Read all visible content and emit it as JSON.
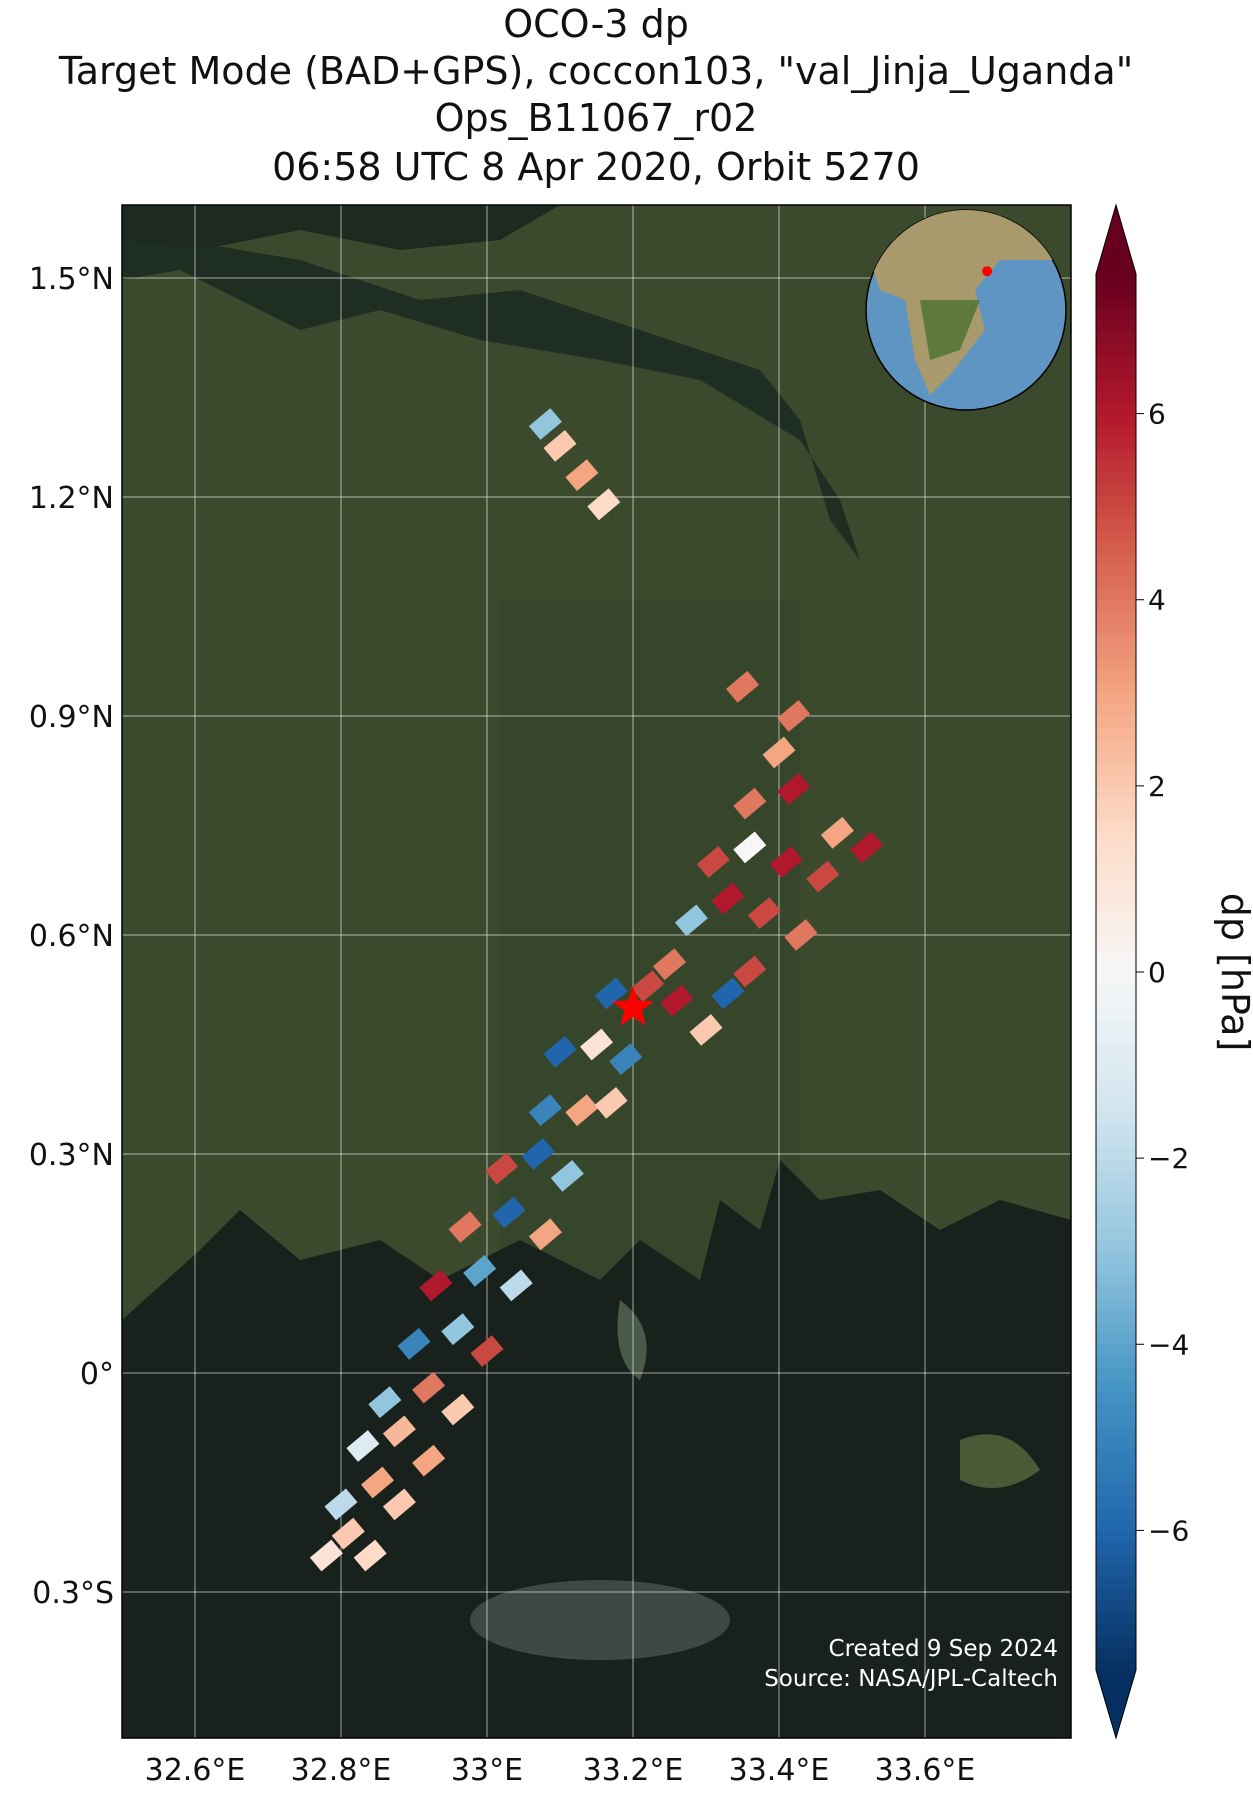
{
  "chart_data": {
    "type": "map",
    "title": [
      "OCO-3 dp",
      "Target Mode (BAD+GPS), coccon103, \"val_Jinja_Uganda\"",
      "Ops_B11067_r02",
      "06:58 UTC 8 Apr 2020, Orbit 5270"
    ],
    "xlim": [
      32.5,
      33.8
    ],
    "ylim": [
      -0.5,
      1.6
    ],
    "xticks": [
      {
        "value": 32.6,
        "label": "32.6°E"
      },
      {
        "value": 32.8,
        "label": "32.8°E"
      },
      {
        "value": 33.0,
        "label": "33°E"
      },
      {
        "value": 33.2,
        "label": "33.2°E"
      },
      {
        "value": 33.4,
        "label": "33.4°E"
      },
      {
        "value": 33.6,
        "label": "33.6°E"
      }
    ],
    "yticks": [
      {
        "value": -0.3,
        "label": "0.3°S"
      },
      {
        "value": 0,
        "label": "0°"
      },
      {
        "value": 0.3,
        "label": "0.3°N"
      },
      {
        "value": 0.6,
        "label": "0.6°N"
      },
      {
        "value": 0.9,
        "label": "0.9°N"
      },
      {
        "value": 1.2,
        "label": "1.2°N"
      },
      {
        "value": 1.5,
        "label": "1.5°N"
      }
    ],
    "grid": true,
    "colorbar": {
      "label": "dp [hPa]",
      "clim": [
        -7.5,
        7.5
      ],
      "ticks": [
        {
          "value": -6,
          "label": "−6"
        },
        {
          "value": -4,
          "label": "−4"
        },
        {
          "value": -2,
          "label": "−2"
        },
        0,
        2,
        4,
        6
      ],
      "colors": [
        "#053061",
        "#2166ac",
        "#4393c3",
        "#92c5de",
        "#d1e5f0",
        "#f7f7f7",
        "#fddbc7",
        "#f4a582",
        "#d6604d",
        "#b2182b",
        "#67001f"
      ]
    },
    "target": {
      "lon": 33.2,
      "lat": 0.5,
      "color": "#ff0000"
    },
    "footprints": {
      "lon": [
        32.78,
        32.81,
        32.84,
        32.8,
        32.85,
        32.88,
        32.83,
        32.88,
        32.92,
        32.86,
        32.92,
        32.96,
        32.9,
        32.96,
        33.0,
        32.93,
        32.99,
        33.04,
        32.97,
        33.03,
        33.08,
        33.02,
        33.07,
        33.11,
        33.08,
        33.13,
        33.17,
        33.1,
        33.15,
        33.19,
        33.17,
        33.22,
        33.26,
        33.25,
        33.3,
        33.33,
        33.36,
        33.28,
        33.33,
        33.38,
        33.43,
        33.31,
        33.36,
        33.41,
        33.46,
        33.36,
        33.42,
        33.48,
        33.52,
        33.4,
        33.42,
        33.35,
        33.1,
        33.13,
        33.16,
        33.08
      ],
      "lat": [
        -0.25,
        -0.22,
        -0.25,
        -0.18,
        -0.15,
        -0.18,
        -0.1,
        -0.08,
        -0.12,
        -0.04,
        -0.02,
        -0.05,
        0.04,
        0.06,
        0.03,
        0.12,
        0.14,
        0.12,
        0.2,
        0.22,
        0.19,
        0.28,
        0.3,
        0.27,
        0.36,
        0.36,
        0.37,
        0.44,
        0.45,
        0.43,
        0.52,
        0.53,
        0.51,
        0.56,
        0.47,
        0.52,
        0.55,
        0.62,
        0.65,
        0.63,
        0.6,
        0.7,
        0.72,
        0.7,
        0.68,
        0.78,
        0.8,
        0.74,
        0.72,
        0.85,
        0.9,
        0.94,
        1.27,
        1.23,
        1.19,
        1.3
      ],
      "values": [
        1,
        2,
        1.5,
        -2,
        3,
        2,
        -1,
        2.5,
        3,
        -3,
        4,
        2,
        -5,
        -3,
        5,
        6,
        -4,
        -2,
        4,
        -6,
        3,
        5,
        -6,
        -3,
        -5,
        3,
        2,
        -6,
        1,
        -5,
        -6,
        5,
        6,
        4,
        2,
        -6,
        5,
        -3,
        6,
        5,
        4,
        5,
        0,
        6,
        5,
        4,
        6,
        3,
        6,
        3,
        4,
        4,
        2,
        3,
        1.5,
        -3
      ]
    },
    "credits": [
      "Created 9 Sep 2024",
      "Source: NASA/JPL-Caltech"
    ]
  }
}
